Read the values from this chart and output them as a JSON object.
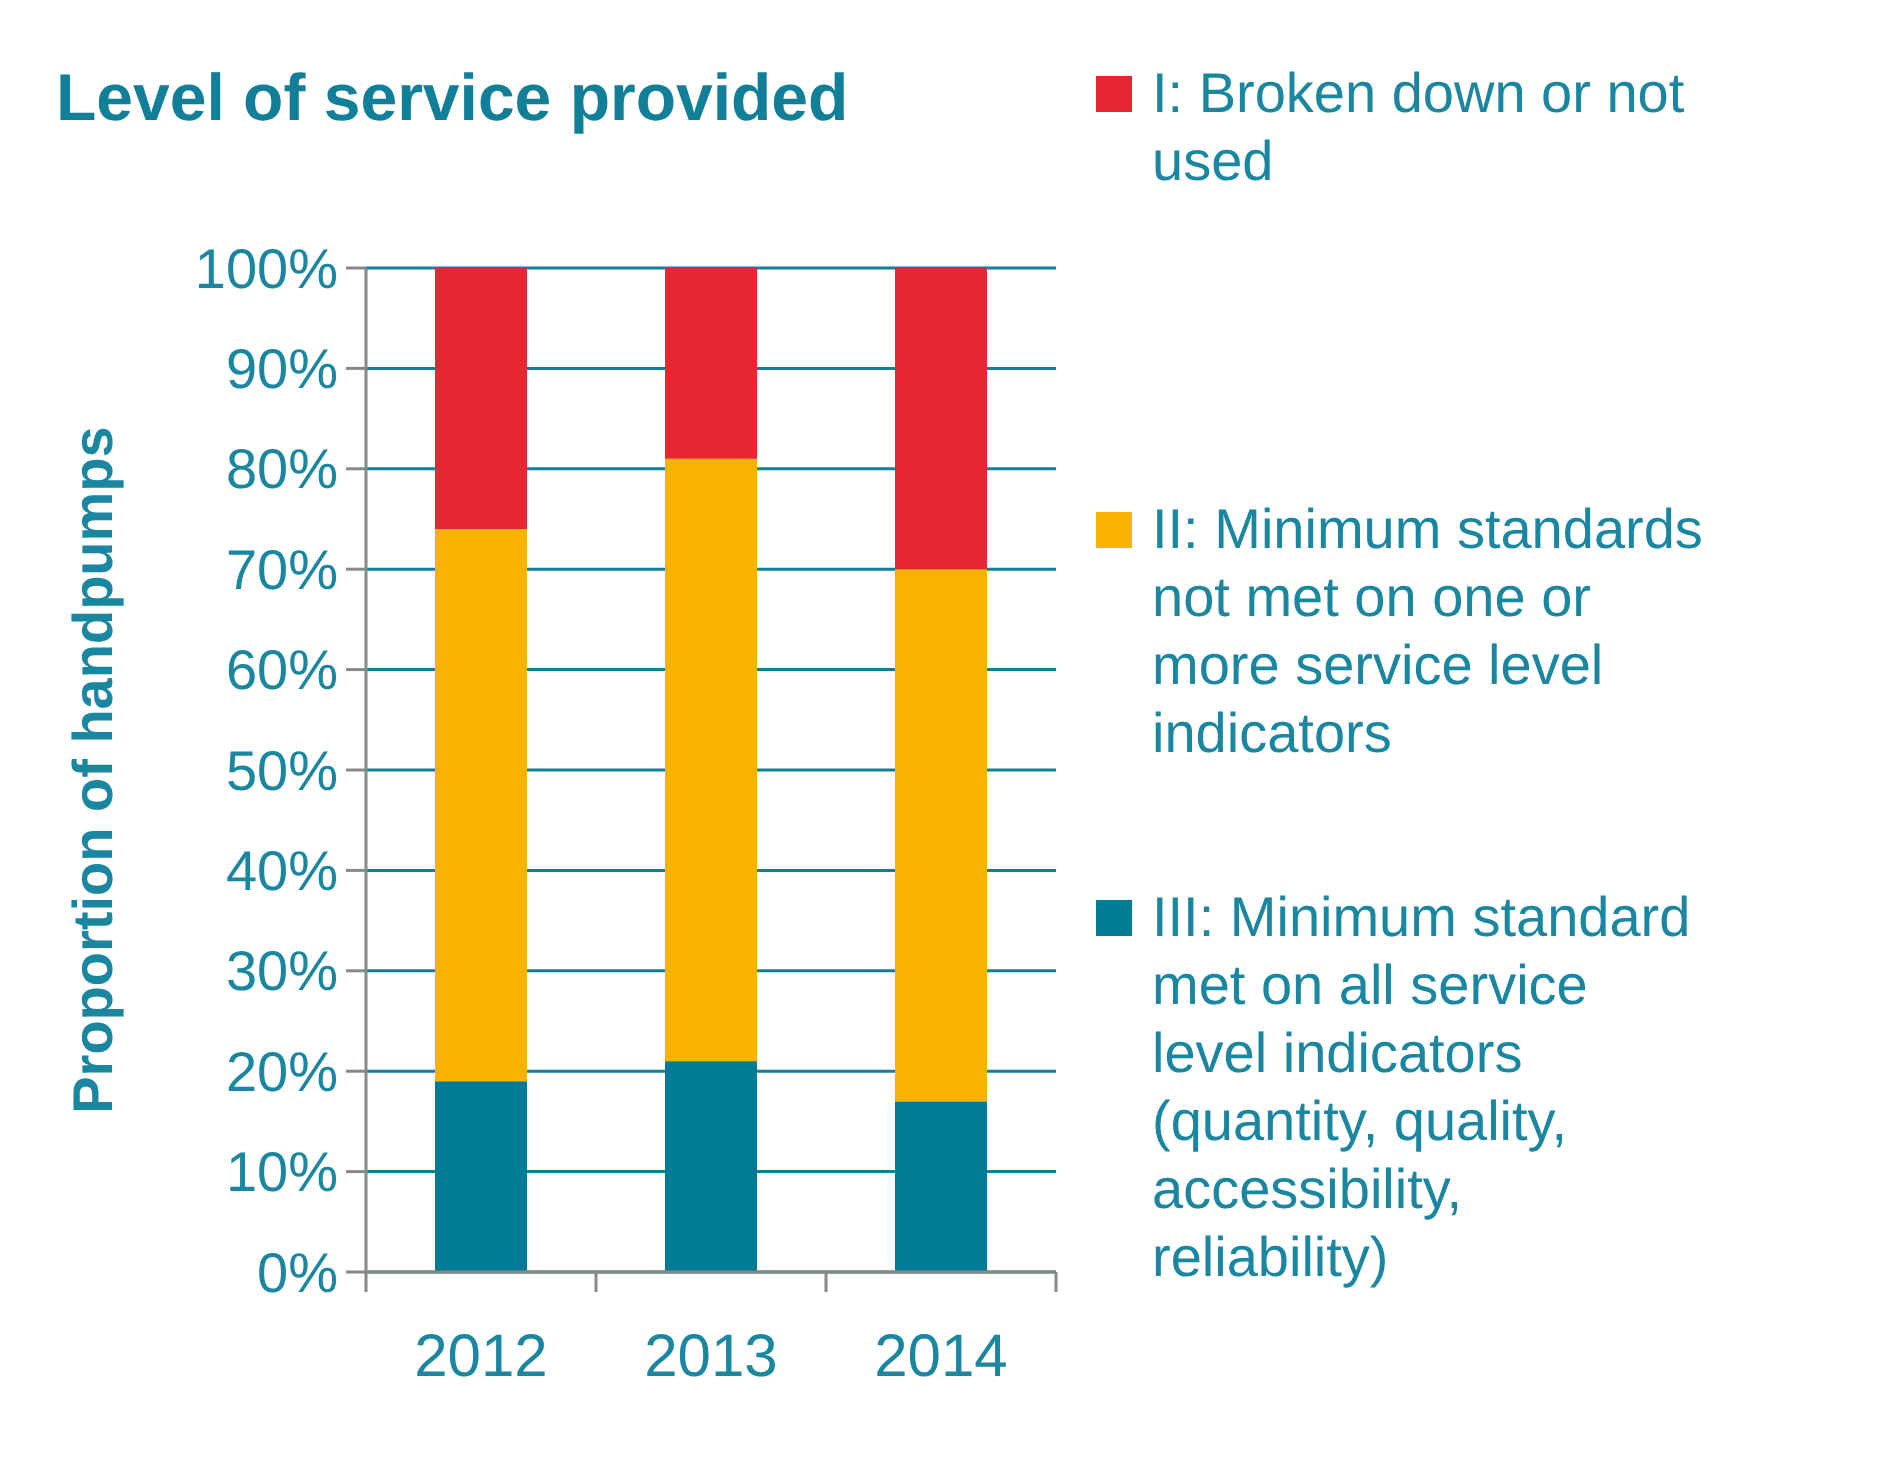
{
  "chart_data": {
    "type": "bar",
    "title": "Level of service provided",
    "ylabel": "Proportion of handpumps",
    "categories": [
      "2012",
      "2013",
      "2014"
    ],
    "stacked": true,
    "series": [
      {
        "name": "III: Minimum standard met on all service level indicators (quantity, quality, accessibility, reliability)",
        "color": "#007b96",
        "values": [
          19,
          21,
          17
        ]
      },
      {
        "name": "II: Minimum standards not met on one or more service level indicators",
        "color": "#f8b200",
        "values": [
          55,
          60,
          53
        ]
      },
      {
        "name": "I: Broken down or not used",
        "color": "#e52732",
        "values": [
          26,
          19,
          30
        ]
      }
    ],
    "ylim": [
      0,
      100
    ],
    "yticks": [
      {
        "value": 0,
        "label": "0%"
      },
      {
        "value": 10,
        "label": "10%"
      },
      {
        "value": 20,
        "label": "20%"
      },
      {
        "value": 30,
        "label": "30%"
      },
      {
        "value": 40,
        "label": "40%"
      },
      {
        "value": 50,
        "label": "50%"
      },
      {
        "value": 60,
        "label": "60%"
      },
      {
        "value": 70,
        "label": "70%"
      },
      {
        "value": 80,
        "label": "80%"
      },
      {
        "value": 90,
        "label": "90%"
      },
      {
        "value": 100,
        "label": "100%"
      }
    ],
    "grid": "y",
    "legend": "right"
  }
}
